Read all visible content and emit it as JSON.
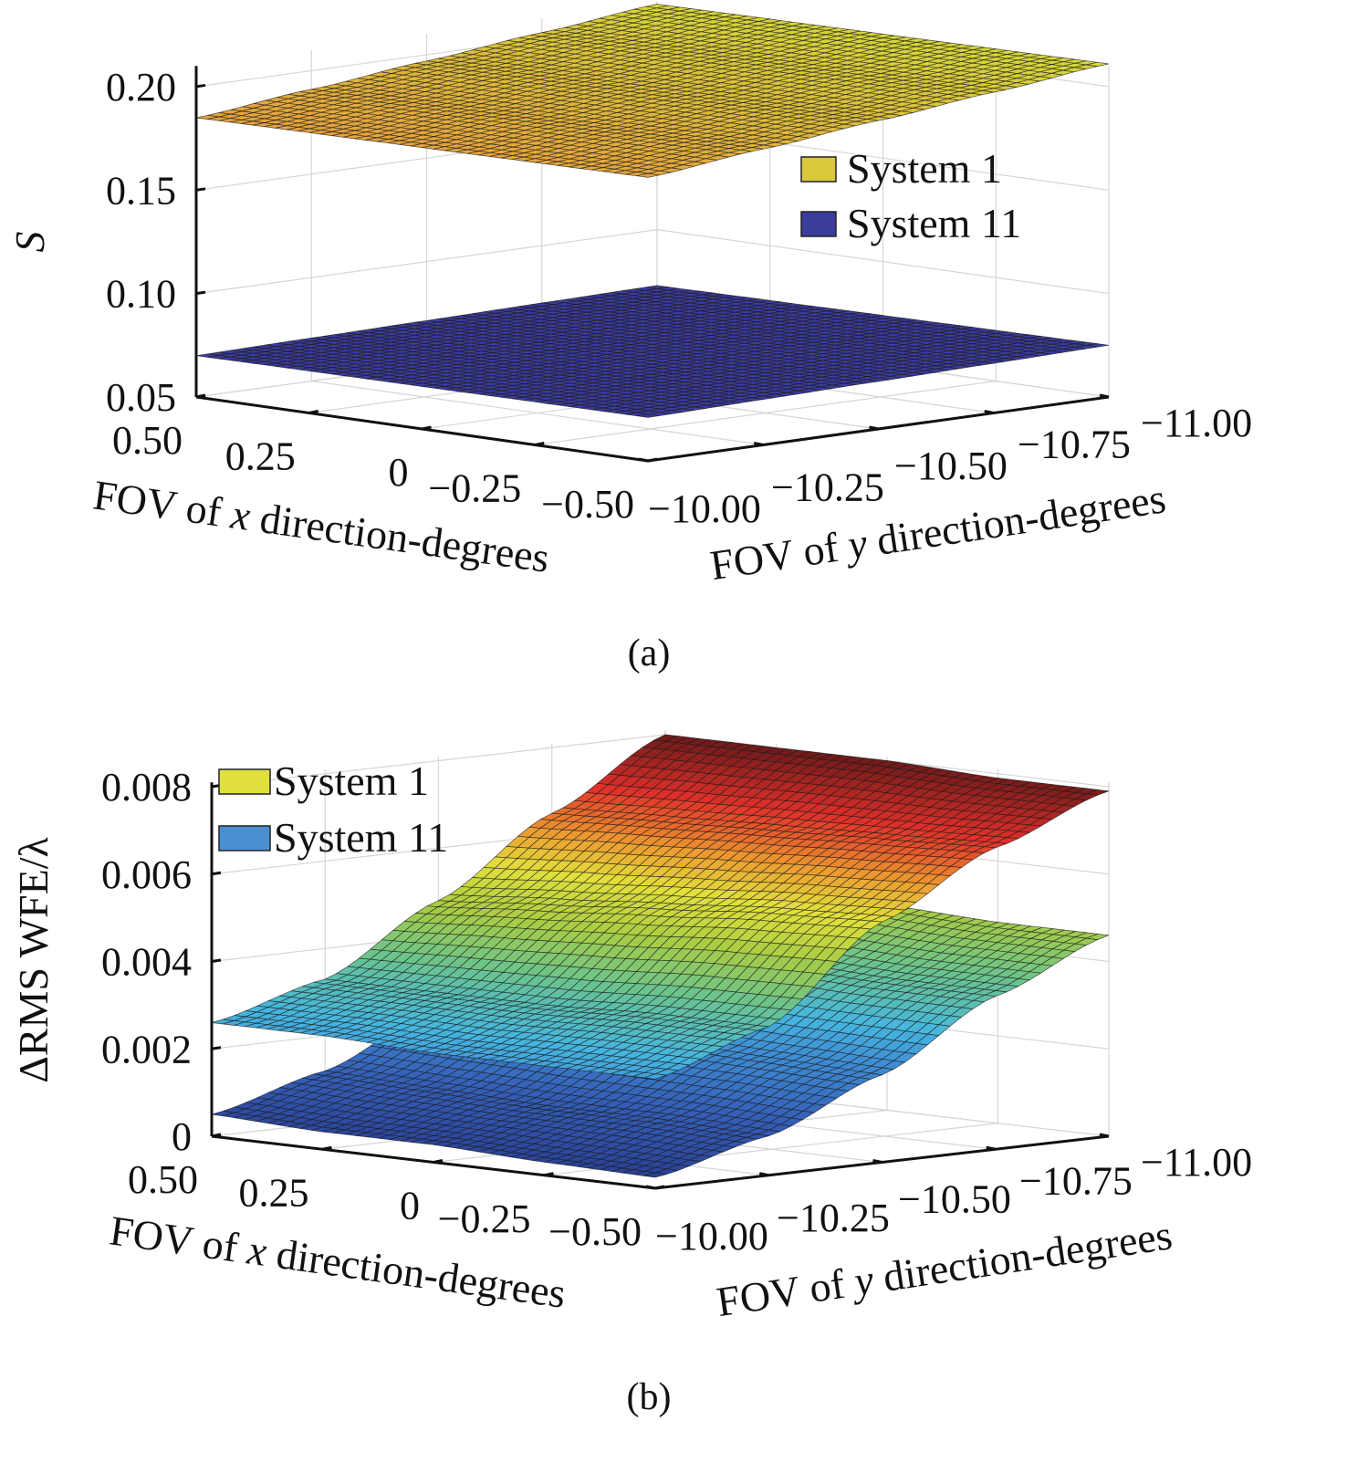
{
  "chart_data": [
    {
      "type": "surface",
      "caption": "(a)",
      "xlabel": {
        "pre": "FOV of ",
        "var": "x",
        "post": " direction-degrees"
      },
      "ylabel": {
        "pre": "FOV of ",
        "var": "y",
        "post": " direction-degrees"
      },
      "zlabel": "S",
      "x": [
        0.5,
        0.25,
        0,
        -0.25,
        -0.5
      ],
      "y": [
        -10,
        -10.25,
        -10.5,
        -10.75,
        -11
      ],
      "x_tick_labels": [
        "0.50",
        "0.25",
        "0",
        "−0.25",
        "−0.50"
      ],
      "y_tick_labels": [
        "−10.00",
        "−10.25",
        "−10.50",
        "−10.75",
        "−11.00"
      ],
      "z_ticks": [
        0.05,
        0.1,
        0.15,
        0.2
      ],
      "z_tick_labels": [
        "0.05",
        "0.10",
        "0.15",
        "0.20"
      ],
      "zlim": [
        0.05,
        0.21
      ],
      "grid": true,
      "legend_placement": "right",
      "series": [
        {
          "name": "System 11",
          "legend_color": "#3b3c9c",
          "z": [
            [
              0.07,
              0.0708,
              0.0715,
              0.0723,
              0.073
            ],
            [
              0.0703,
              0.0711,
              0.0719,
              0.0727,
              0.0735
            ],
            [
              0.0705,
              0.0714,
              0.0723,
              0.0731,
              0.074
            ],
            [
              0.0708,
              0.0717,
              0.0726,
              0.0736,
              0.0745
            ],
            [
              0.071,
              0.072,
              0.073,
              0.074,
              0.075
            ]
          ]
        },
        {
          "name": "System 1",
          "legend_color": "#d9c93a",
          "z": [
            [
              0.185,
              0.191,
              0.197,
              0.203,
              0.209
            ],
            [
              0.1855,
              0.1915,
              0.1975,
              0.2035,
              0.2095
            ],
            [
              0.186,
              0.192,
              0.198,
              0.204,
              0.21
            ],
            [
              0.1865,
              0.1925,
              0.1985,
              0.2045,
              0.2105
            ],
            [
              0.187,
              0.193,
              0.199,
              0.205,
              0.211
            ]
          ]
        }
      ],
      "colorscale": [
        [
          0.07,
          "#3b3c9c"
        ],
        [
          0.076,
          "#3b3c9c"
        ],
        [
          0.185,
          "#e6a23e"
        ],
        [
          0.198,
          "#dcbc3c"
        ],
        [
          0.211,
          "#d6d83c"
        ]
      ]
    },
    {
      "type": "surface",
      "caption": "(b)",
      "xlabel": {
        "pre": "FOV of ",
        "var": "x",
        "post": " direction-degrees"
      },
      "ylabel": {
        "pre": "FOV of ",
        "var": "y",
        "post": " direction-degrees"
      },
      "zlabel": "ΔRMS WFE/λ",
      "x": [
        0.5,
        0.25,
        0,
        -0.25,
        -0.5
      ],
      "y": [
        -10,
        -10.25,
        -10.5,
        -10.75,
        -11
      ],
      "x_tick_labels": [
        "0.50",
        "0.25",
        "0",
        "−0.25",
        "−0.50"
      ],
      "y_tick_labels": [
        "−10.00",
        "−10.25",
        "−10.50",
        "−10.75",
        "−11.00"
      ],
      "z_ticks": [
        0,
        0.002,
        0.004,
        0.006,
        0.008
      ],
      "z_tick_labels": [
        "0",
        "0.002",
        "0.004",
        "0.006",
        "0.008"
      ],
      "zlim": [
        0,
        0.008
      ],
      "grid": true,
      "legend_placement": "top-left",
      "series": [
        {
          "name": "System 11",
          "legend_color": "#4a8fd0",
          "z": [
            [
              0.0005,
              0.0012,
              0.0024,
              0.0038,
              0.0048
            ],
            [
              0.0004,
              0.0011,
              0.0023,
              0.0037,
              0.0047
            ],
            [
              0.0004,
              0.001,
              0.0022,
              0.0036,
              0.0047
            ],
            [
              0.0003,
              0.001,
              0.0021,
              0.0035,
              0.0046
            ],
            [
              0.00025,
              0.0009,
              0.002,
              0.0035,
              0.0046
            ]
          ]
        },
        {
          "name": "System 1",
          "legend_color": "#dfe03e",
          "z": [
            [
              0.0026,
              0.0033,
              0.0048,
              0.0065,
              0.008
            ],
            [
              0.0026,
              0.0033,
              0.005,
              0.0066,
              0.008
            ],
            [
              0.0025,
              0.0033,
              0.0052,
              0.0067,
              0.008
            ],
            [
              0.0025,
              0.0034,
              0.0054,
              0.0068,
              0.0079
            ],
            [
              0.0025,
              0.0034,
              0.0055,
              0.0069,
              0.0079
            ]
          ]
        }
      ],
      "colorscale": [
        [
          0,
          "#283a8e"
        ],
        [
          0.0012,
          "#3560b8"
        ],
        [
          0.0022,
          "#3f8fd4"
        ],
        [
          0.0028,
          "#46b6e0"
        ],
        [
          0.0038,
          "#6cc48a"
        ],
        [
          0.0047,
          "#a8cc44"
        ],
        [
          0.0055,
          "#e2e03c"
        ],
        [
          0.0062,
          "#ec9a30"
        ],
        [
          0.007,
          "#e0302a"
        ],
        [
          0.008,
          "#6e1a1a"
        ]
      ]
    }
  ]
}
